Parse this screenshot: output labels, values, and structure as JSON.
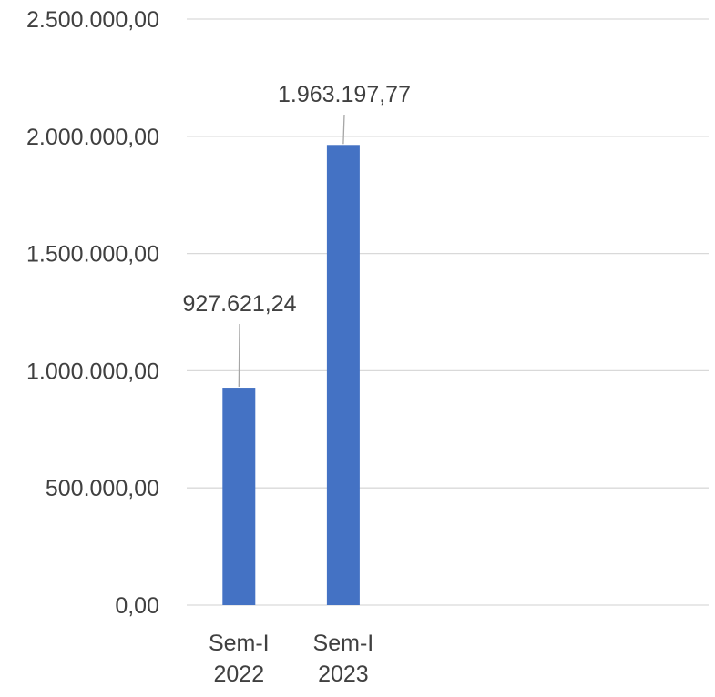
{
  "chart_data": {
    "type": "bar",
    "title": "",
    "xlabel": "",
    "ylabel": "",
    "categories": [
      [
        "Sem-I",
        "2022"
      ],
      [
        "Sem-I",
        "2023"
      ]
    ],
    "slots": 5,
    "series": [
      {
        "values": [
          927621.24,
          1963197.77
        ],
        "data_labels": [
          "927.621,24",
          "1.963.197,77"
        ],
        "color": "#4472C4"
      }
    ],
    "ylim": [
      0,
      2500000
    ],
    "y_ticks": [
      0,
      500000,
      1000000,
      1500000,
      2000000,
      2500000
    ],
    "y_tick_labels": [
      "0,00",
      "500.000,00",
      "1.000.000,00",
      "1.500.000,00",
      "2.000.000,00",
      "2.500.000,00"
    ],
    "grid": true,
    "legend": "none",
    "colors": {
      "bar": "#4472C4",
      "grid": "#D9D9D9",
      "text": "#404040",
      "leader": "#A6A6A6"
    }
  }
}
